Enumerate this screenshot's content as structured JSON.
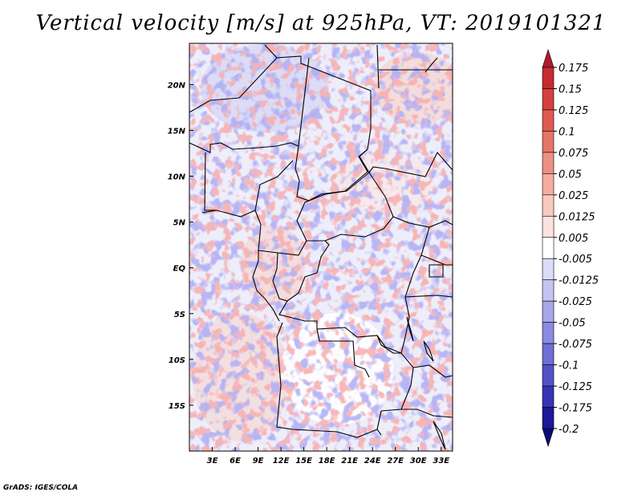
{
  "title": "Vertical velocity [m/s] at 925hPa, VT: 2019101321",
  "credit": "GrADS: IGES/COLA",
  "map": {
    "lon_range": [
      0,
      34.5
    ],
    "lat_range": [
      -20,
      24.5
    ],
    "lon_ticks": [
      "3E",
      "6E",
      "9E",
      "12E",
      "15E",
      "18E",
      "21E",
      "24E",
      "27E",
      "30E",
      "33E"
    ],
    "lon_tick_values": [
      3,
      6,
      9,
      12,
      15,
      18,
      21,
      24,
      27,
      30,
      33
    ],
    "lat_ticks": [
      "20N",
      "15N",
      "10N",
      "5N",
      "EQ",
      "5S",
      "10S",
      "15S"
    ],
    "lat_tick_values": [
      20,
      15,
      10,
      5,
      0,
      -5,
      -10,
      -15
    ]
  },
  "colorbar": {
    "labels": [
      "0.175",
      "0.15",
      "0.125",
      "0.1",
      "0.075",
      "0.05",
      "0.025",
      "0.0125",
      "0.005",
      "-0.005",
      "-0.0125",
      "-0.025",
      "-0.05",
      "-0.075",
      "-0.1",
      "-0.125",
      "-0.175",
      "-0.2"
    ],
    "colors": [
      "#b2182b",
      "#c62b2f",
      "#d6403c",
      "#e05a50",
      "#e67566",
      "#ee9081",
      "#f4ad9f",
      "#f8c9bf",
      "#fbe2dc",
      "#ffffff",
      "#dcdcf8",
      "#c4c4f2",
      "#a6a6ea",
      "#8a8ae0",
      "#6e6ed6",
      "#5252c8",
      "#3434b4",
      "#1a1a9a",
      "#0a0a78"
    ]
  }
}
